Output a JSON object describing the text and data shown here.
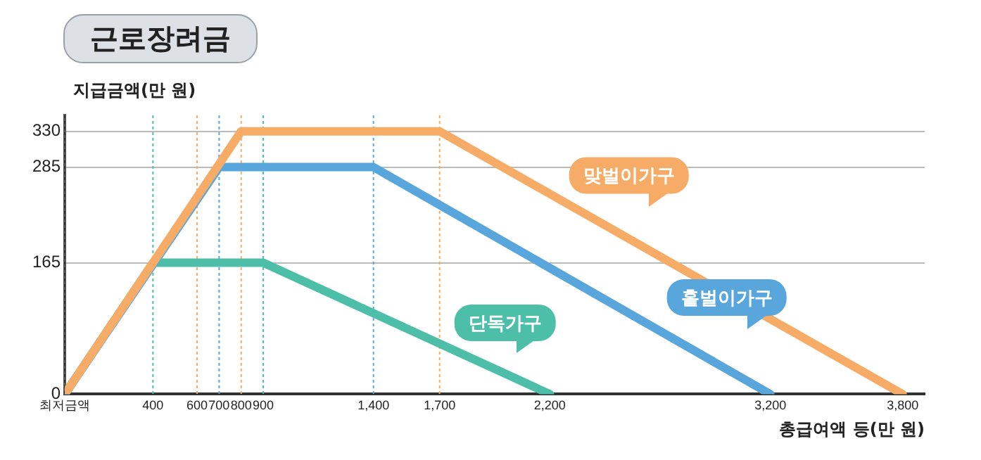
{
  "chart_data": {
    "type": "line",
    "title": "근로장려금",
    "ylabel": "지급금액(만 원)",
    "xlabel": "총급여액 등(만 원)",
    "xlim": [
      0,
      3900
    ],
    "xticks": [
      {
        "value": 0,
        "label": "최저금액"
      },
      {
        "value": 400,
        "label": "400"
      },
      {
        "value": 600,
        "label": "600"
      },
      {
        "value": 700,
        "label": "700"
      },
      {
        "value": 800,
        "label": "800"
      },
      {
        "value": 900,
        "label": "900"
      },
      {
        "value": 1400,
        "label": "1,400"
      },
      {
        "value": 1700,
        "label": "1,700"
      },
      {
        "value": 2200,
        "label": "2,200"
      },
      {
        "value": 3200,
        "label": "3,200"
      },
      {
        "value": 3800,
        "label": "3,800"
      }
    ],
    "ylim": [
      0,
      350
    ],
    "yticks": [
      0,
      165,
      285,
      330
    ],
    "grid": "y",
    "legend": false,
    "marker": "none",
    "line_style": "solid",
    "series": [
      {
        "name": "맞벌이가구",
        "color": "#f6ac66",
        "x": [
          0,
          800,
          1700,
          3800
        ],
        "values": [
          0,
          330,
          330,
          0
        ]
      },
      {
        "name": "홑벌이가구",
        "color": "#58a6dc",
        "x": [
          0,
          700,
          1400,
          3200
        ],
        "values": [
          0,
          285,
          285,
          0
        ]
      },
      {
        "name": "단독가구",
        "color": "#4dbfa9",
        "x": [
          0,
          400,
          900,
          2200
        ],
        "values": [
          0,
          165,
          165,
          0
        ]
      }
    ],
    "ref_lines": [
      {
        "axis": "x",
        "value": 0,
        "color": "#333333",
        "line_style": "dotted"
      },
      {
        "axis": "x",
        "value": 400,
        "color": "#4dbfa9",
        "line_style": "dotted"
      },
      {
        "axis": "x",
        "value": 600,
        "color": "#f6ac66",
        "line_style": "dotted"
      },
      {
        "axis": "x",
        "value": 700,
        "color": "#58a6dc",
        "line_style": "dotted"
      },
      {
        "axis": "x",
        "value": 800,
        "color": "#f6ac66",
        "line_style": "dotted"
      },
      {
        "axis": "x",
        "value": 900,
        "color": "#4dbfa9",
        "line_style": "dotted"
      },
      {
        "axis": "x",
        "value": 1400,
        "color": "#58a6dc",
        "line_style": "dotted"
      },
      {
        "axis": "x",
        "value": 1700,
        "color": "#f6ac66",
        "line_style": "dotted"
      }
    ]
  }
}
